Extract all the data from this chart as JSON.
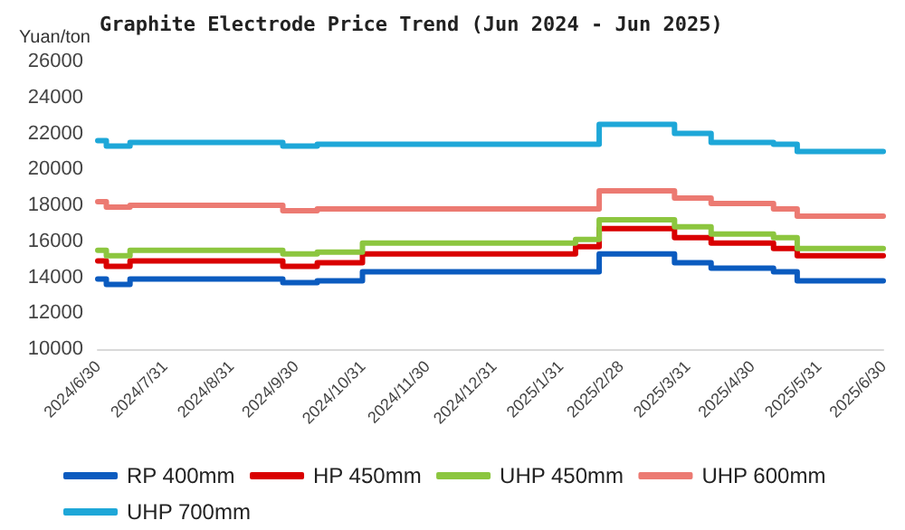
{
  "chart_data": {
    "type": "step",
    "title": "Graphite Electrode Price Trend (Jun 2024 - Jun 2025)",
    "ylabel": "Yuan/ton",
    "x": [
      "2024-06-30",
      "2024-07-04",
      "2024-07-15",
      "2024-09-24",
      "2024-10-10",
      "2024-10-31",
      "2025-02-07",
      "2025-02-18",
      "2025-03-25",
      "2025-04-11",
      "2025-05-10",
      "2025-05-21",
      "2025-06-30"
    ],
    "series": [
      {
        "name": "RP 400mm",
        "color": "#0b5bbf",
        "values": [
          13900,
          13600,
          13900,
          13700,
          13800,
          14300,
          14300,
          15300,
          14800,
          14500,
          14300,
          13800,
          13800
        ]
      },
      {
        "name": "HP 450mm",
        "color": "#d90000",
        "values": [
          14900,
          14600,
          14900,
          14600,
          14800,
          15300,
          15700,
          16700,
          16200,
          15900,
          15600,
          15200,
          15200
        ]
      },
      {
        "name": "UHP 450mm",
        "color": "#8cc63f",
        "values": [
          15500,
          15200,
          15500,
          15300,
          15400,
          15900,
          16100,
          17200,
          16800,
          16400,
          16200,
          15600,
          15600
        ]
      },
      {
        "name": "UHP 600mm",
        "color": "#ec7a72",
        "values": [
          18200,
          17900,
          18000,
          17700,
          17800,
          17800,
          17800,
          18800,
          18400,
          18100,
          17800,
          17400,
          17400
        ]
      },
      {
        "name": "UHP 700mm",
        "color": "#1ea7d8",
        "values": [
          21600,
          21300,
          21500,
          21300,
          21400,
          21400,
          21400,
          22500,
          22000,
          21500,
          21400,
          21000,
          21000
        ]
      }
    ],
    "xlim": [
      "2024-06-30",
      "2025-06-30"
    ],
    "xticks": [
      {
        "value": "2024-06-30",
        "label": "2024/6/30"
      },
      {
        "value": "2024-07-31",
        "label": "2024/7/31"
      },
      {
        "value": "2024-08-31",
        "label": "2024/8/31"
      },
      {
        "value": "2024-09-30",
        "label": "2024/9/30"
      },
      {
        "value": "2024-10-31",
        "label": "2024/10/31"
      },
      {
        "value": "2024-11-30",
        "label": "2024/11/30"
      },
      {
        "value": "2024-12-31",
        "label": "2024/12/31"
      },
      {
        "value": "2025-01-31",
        "label": "2025/1/31"
      },
      {
        "value": "2025-02-28",
        "label": "2025/2/28"
      },
      {
        "value": "2025-03-31",
        "label": "2025/3/31"
      },
      {
        "value": "2025-04-30",
        "label": "2025/4/30"
      },
      {
        "value": "2025-05-31",
        "label": "2025/5/31"
      },
      {
        "value": "2025-06-30",
        "label": "2025/6/30"
      }
    ],
    "ylim": [
      10000,
      26000
    ],
    "yticks": [
      10000,
      12000,
      14000,
      16000,
      18000,
      20000,
      22000,
      24000,
      26000
    ],
    "grid": false,
    "legend": "bottom",
    "marker": "none",
    "line_style": "solid"
  }
}
